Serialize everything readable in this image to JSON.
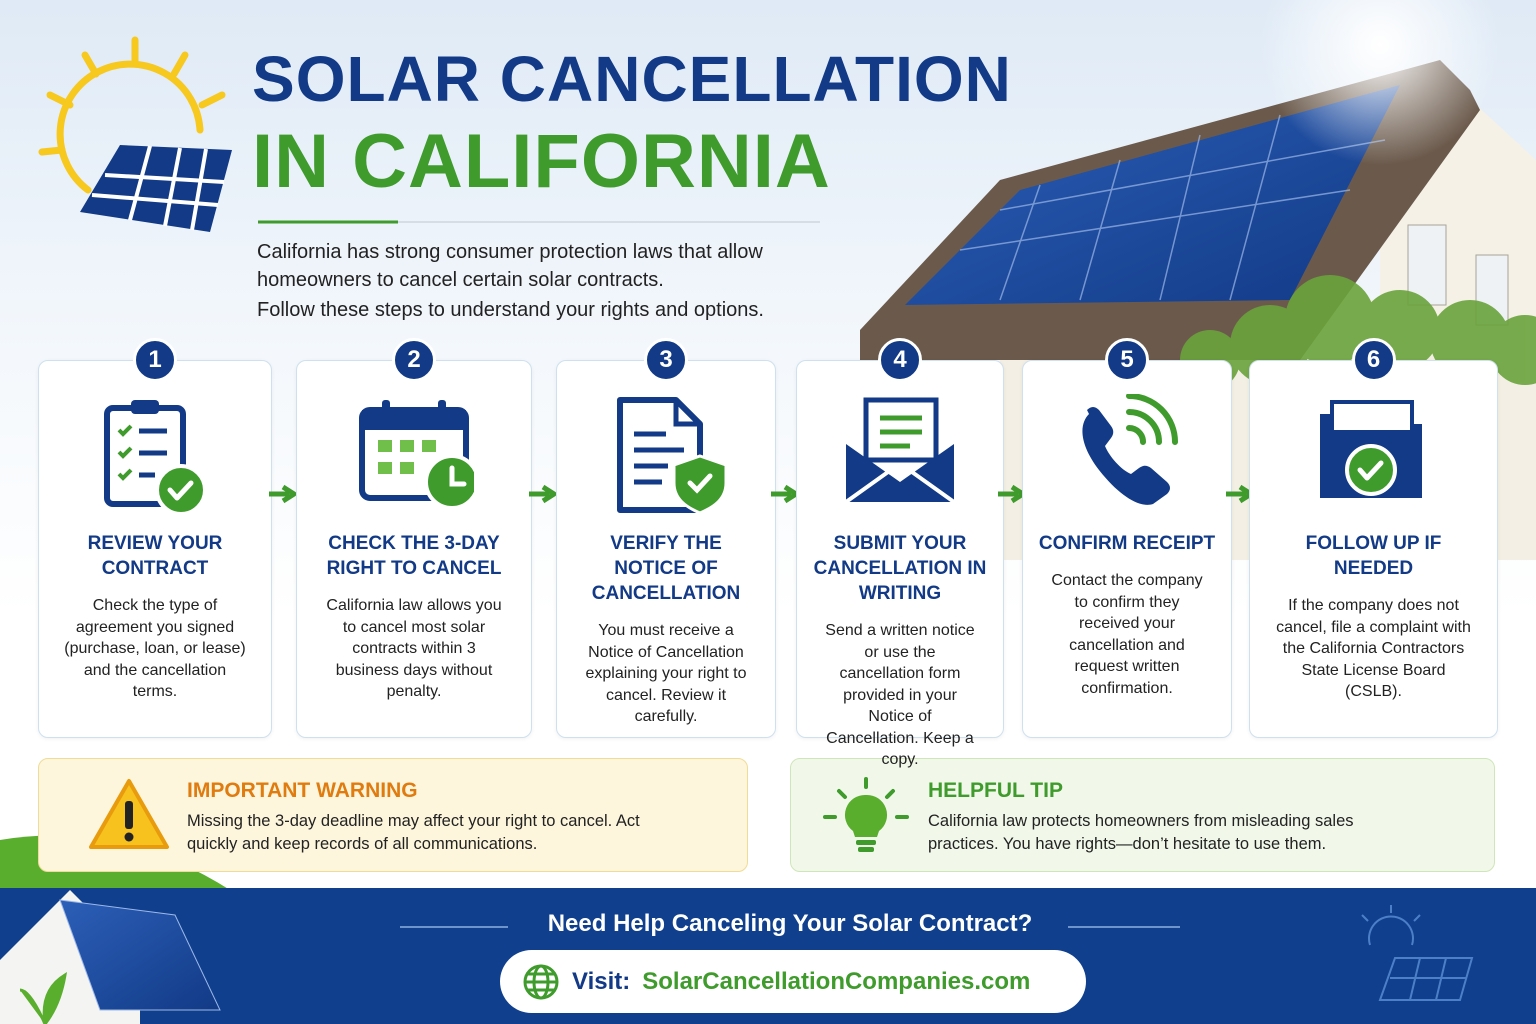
{
  "header": {
    "title_line1": "SOLAR CANCELLATION",
    "title_line2": "IN CALIFORNIA"
  },
  "intro": [
    "California has strong consumer protection laws that allow homeowners to cancel certain solar contracts.",
    "Follow these steps to understand your rights and options."
  ],
  "steps": [
    {
      "number": "1",
      "title": "REVIEW YOUR CONTRACT",
      "text": "Check the type of agreement you signed (purchase, loan, or lease) and the cancellation terms."
    },
    {
      "number": "2",
      "title": "CHECK THE 3-DAY RIGHT TO CANCEL",
      "text": "California law allows you to cancel most solar contracts within 3 business days without penalty."
    },
    {
      "number": "3",
      "title": "VERIFY THE NOTICE OF CANCELLATION",
      "text": "You must receive a Notice of Cancellation explaining your right to cancel. Review it carefully."
    },
    {
      "number": "4",
      "title": "SUBMIT YOUR CANCELLATION IN WRITING",
      "text": "Send a written notice or use the cancellation form provided in your Notice of Cancellation. Keep a copy."
    },
    {
      "number": "5",
      "title": "CONFIRM RECEIPT",
      "text": "Contact the company to confirm they received your cancellation and request written confirmation."
    },
    {
      "number": "6",
      "title": "FOLLOW UP IF NEEDED",
      "text": "If the company does not cancel, file a complaint with the California Contractors State License Board (CSLB)."
    }
  ],
  "warning": {
    "title": "IMPORTANT WARNING",
    "text": "Missing the 3-day deadline may affect your right to cancel. Act quickly and keep records of all communications."
  },
  "tip": {
    "title": "HELPFUL TIP",
    "text": "California law protects homeowners from misleading sales practices. You have rights—don’t hesitate to use them."
  },
  "footer": {
    "question": "Need Help Canceling Your Solar Contract?",
    "visit_label": "Visit:",
    "url": "SolarCancellationCompanies.com"
  }
}
